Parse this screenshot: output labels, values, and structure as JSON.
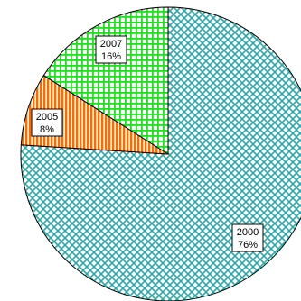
{
  "chart_data": {
    "type": "pie",
    "title": "",
    "slices": [
      {
        "label": "2000",
        "value": 76,
        "value_label": "76%",
        "color": "#2aa9a6",
        "pattern": "diagonal-crosshatch"
      },
      {
        "label": "2005",
        "value": 8,
        "value_label": "8%",
        "color": "#ff6a00",
        "pattern": "vertical-stripes"
      },
      {
        "label": "2007",
        "value": 16,
        "value_label": "16%",
        "color": "#22dd22",
        "pattern": "grid"
      }
    ],
    "start": "top",
    "direction": "clockwise",
    "legend": "none",
    "outline_color": "#000000"
  }
}
